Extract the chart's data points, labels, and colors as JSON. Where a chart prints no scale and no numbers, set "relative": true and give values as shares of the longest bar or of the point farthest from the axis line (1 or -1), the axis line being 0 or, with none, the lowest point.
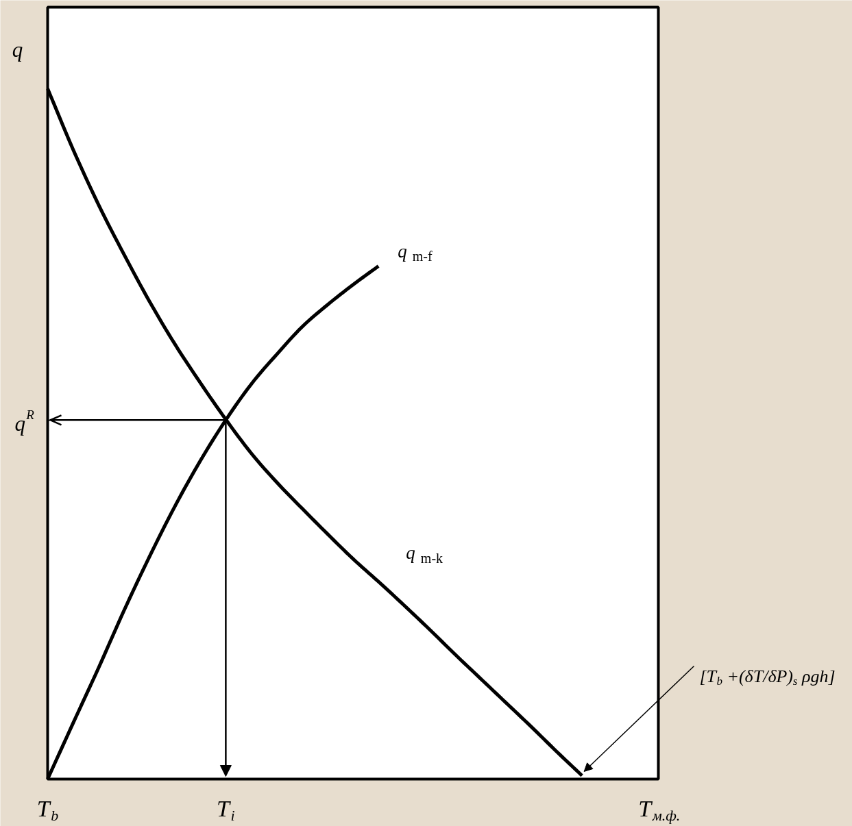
{
  "chart_data": {
    "type": "line",
    "relative": true,
    "ylabel": "q",
    "line_style": "solid",
    "categories": [
      "T$_{b}$",
      null,
      null,
      null,
      null,
      null,
      null,
      "T$_{i}$",
      null,
      null,
      null,
      null,
      null,
      null,
      null,
      null,
      null,
      null,
      null,
      null,
      null,
      null,
      null,
      null,
      "T$_{м.ф.}$"
    ],
    "series": [
      {
        "name": "q$_{m-f}$",
        "color": "#000000",
        "values": [
          0,
          0.081,
          0.161,
          0.244,
          0.322,
          0.395,
          0.461,
          0.52,
          0.572,
          0.615,
          0.655,
          0.687,
          0.716,
          0.743,
          null,
          null,
          null,
          null,
          null,
          null,
          null,
          null,
          null,
          null,
          null
        ]
      },
      {
        "name": "q$_{m-k}$",
        "color": "#000000",
        "values": [
          1.0,
          0.912,
          0.832,
          0.76,
          0.692,
          0.63,
          0.574,
          0.521,
          0.472,
          0.43,
          0.392,
          0.355,
          0.319,
          0.286,
          0.252,
          0.217,
          0.181,
          0.146,
          0.111,
          0.076,
          0.04,
          0.005,
          null,
          null,
          null
        ]
      }
    ],
    "ref_lines": [
      {
        "axis": "y",
        "value": 0.52,
        "label": "q$^{R}$",
        "color": "#000000"
      }
    ],
    "annotations": [
      "[T$_{b}$ +(δT/δP)$_{s}$ ρgh]"
    ]
  }
}
